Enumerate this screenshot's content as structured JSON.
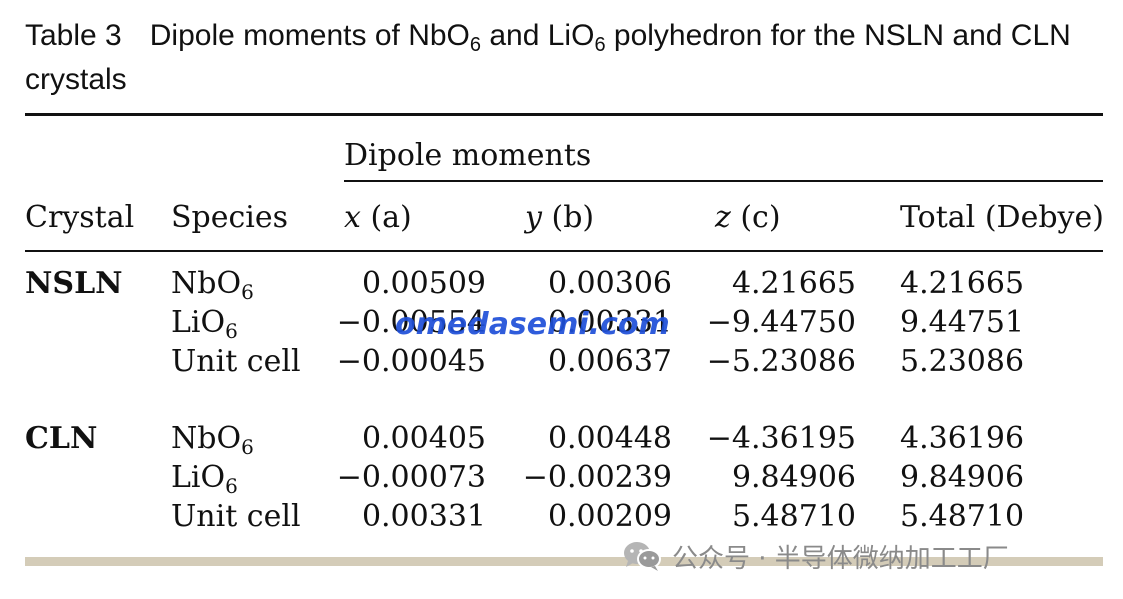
{
  "caption": {
    "label": "Table 3",
    "text_before_sub1": "Dipole moments of NbO",
    "sub1": "6",
    "text_between": " and LiO",
    "sub2": "6",
    "text_after": " polyhedron for the NSLN and CLN crystals"
  },
  "table": {
    "group_header": "Dipole moments",
    "headers": {
      "crystal": "Crystal",
      "species": "Species",
      "x_var": "x",
      "x_unit": " (a)",
      "y_var": "y",
      "y_unit": " (b)",
      "z_var": "z",
      "z_unit": " (c)",
      "total": "Total (Debye)"
    },
    "groups": [
      {
        "crystal": "NSLN",
        "rows": [
          {
            "species": "NbO",
            "sub": "6",
            "x": "0.00509",
            "y": "0.00306",
            "z": "4.21665",
            "total": "4.21665"
          },
          {
            "species": "LiO",
            "sub": "6",
            "x": "−0.00554",
            "y": "0.00331",
            "z": "−9.44750",
            "total": "9.44751"
          },
          {
            "species": "Unit cell",
            "sub": "",
            "x": "−0.00045",
            "y": "0.00637",
            "z": "−5.23086",
            "total": "5.23086"
          }
        ]
      },
      {
        "crystal": "CLN",
        "rows": [
          {
            "species": "NbO",
            "sub": "6",
            "x": "0.00405",
            "y": "0.00448",
            "z": "−4.36195",
            "total": "4.36196"
          },
          {
            "species": "LiO",
            "sub": "6",
            "x": "−0.00073",
            "y": "−0.00239",
            "z": "9.84906",
            "total": "9.84906"
          },
          {
            "species": "Unit cell",
            "sub": "",
            "x": "0.00331",
            "y": "0.00209",
            "z": "5.48710",
            "total": "5.48710"
          }
        ]
      }
    ]
  },
  "watermark": {
    "text": "omedasemi.com",
    "color": "#1e4fd8"
  },
  "footer": {
    "wechat_text": "公众号 · 半导体微纳加工工厂",
    "icon": "wechat-icon"
  }
}
